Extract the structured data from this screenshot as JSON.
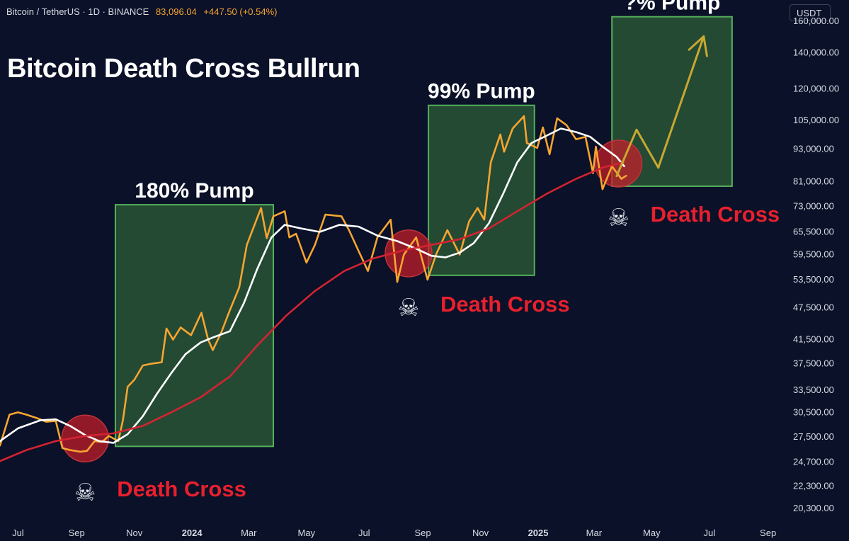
{
  "header": {
    "symbol": "Bitcoin / TetherUS · 1D · BINANCE",
    "last_price": "83,096.04",
    "change": "+447.50 (+0.54%)",
    "currency": "USDT"
  },
  "chart_data": {
    "type": "line",
    "title": "Bitcoin Death Cross Bullrun",
    "y_scale": "log",
    "ylim": [
      19000,
      175000
    ],
    "xlim": [
      "2023-06-12",
      "2025-09-20"
    ],
    "y_ticks": [
      160000,
      140000,
      120000,
      105000,
      93000,
      81000,
      73000,
      65500,
      59500,
      53500,
      47500,
      41500,
      37500,
      33500,
      30500,
      27500,
      24700,
      22300,
      20300
    ],
    "y_tick_labels": [
      "160,000.00",
      "140,000.00",
      "120,000.00",
      "105,000.00",
      "93,000.00",
      "81,000.00",
      "73,000.00",
      "65,500.00",
      "59,500.00",
      "53,500.00",
      "47,500.00",
      "41,500.00",
      "37,500.00",
      "33,500.00",
      "30,500.00",
      "27,500.00",
      "24,700.00",
      "22,300.00",
      "20,300.00"
    ],
    "x_ticks": [
      {
        "label": "Jul",
        "date": "2023-07-01"
      },
      {
        "label": "Sep",
        "date": "2023-09-01"
      },
      {
        "label": "Nov",
        "date": "2023-11-01"
      },
      {
        "label": "2024",
        "date": "2024-01-01"
      },
      {
        "label": "Mar",
        "date": "2024-03-01"
      },
      {
        "label": "May",
        "date": "2024-05-01"
      },
      {
        "label": "Jul",
        "date": "2024-07-01"
      },
      {
        "label": "Sep",
        "date": "2024-09-01"
      },
      {
        "label": "Nov",
        "date": "2024-11-01"
      },
      {
        "label": "2025",
        "date": "2025-01-01"
      },
      {
        "label": "Mar",
        "date": "2025-03-01"
      },
      {
        "label": "May",
        "date": "2025-05-01"
      },
      {
        "label": "Jul",
        "date": "2025-07-01"
      },
      {
        "label": "Sep",
        "date": "2025-09-01"
      }
    ],
    "series": [
      {
        "color": "#f7a531",
        "points": [
          [
            "2023-06-12",
            26500
          ],
          [
            "2023-06-22",
            30200
          ],
          [
            "2023-07-01",
            30500
          ],
          [
            "2023-07-10",
            30200
          ],
          [
            "2023-07-20",
            29800
          ],
          [
            "2023-07-31",
            29300
          ],
          [
            "2023-08-10",
            29400
          ],
          [
            "2023-08-17",
            26200
          ],
          [
            "2023-08-25",
            26000
          ],
          [
            "2023-09-05",
            25800
          ],
          [
            "2023-09-12",
            25900
          ],
          [
            "2023-09-20",
            27000
          ],
          [
            "2023-09-28",
            26900
          ],
          [
            "2023-10-05",
            27600
          ],
          [
            "2023-10-15",
            27000
          ],
          [
            "2023-10-20",
            29500
          ],
          [
            "2023-10-25",
            34000
          ],
          [
            "2023-11-01",
            35000
          ],
          [
            "2023-11-10",
            37200
          ],
          [
            "2023-11-20",
            37500
          ],
          [
            "2023-11-30",
            37700
          ],
          [
            "2023-12-05",
            43500
          ],
          [
            "2023-12-12",
            41500
          ],
          [
            "2023-12-20",
            43700
          ],
          [
            "2023-12-31",
            42300
          ],
          [
            "2024-01-11",
            46500
          ],
          [
            "2024-01-18",
            41500
          ],
          [
            "2024-01-23",
            39700
          ],
          [
            "2024-02-01",
            42800
          ],
          [
            "2024-02-10",
            47000
          ],
          [
            "2024-02-20",
            51800
          ],
          [
            "2024-02-28",
            62000
          ],
          [
            "2024-03-05",
            66000
          ],
          [
            "2024-03-14",
            72500
          ],
          [
            "2024-03-20",
            63800
          ],
          [
            "2024-03-27",
            70000
          ],
          [
            "2024-04-08",
            71500
          ],
          [
            "2024-04-13",
            64000
          ],
          [
            "2024-04-20",
            65000
          ],
          [
            "2024-05-01",
            57500
          ],
          [
            "2024-05-10",
            62000
          ],
          [
            "2024-05-21",
            70500
          ],
          [
            "2024-06-07",
            70000
          ],
          [
            "2024-06-15",
            66000
          ],
          [
            "2024-06-25",
            60500
          ],
          [
            "2024-07-05",
            55500
          ],
          [
            "2024-07-15",
            64000
          ],
          [
            "2024-07-29",
            69000
          ],
          [
            "2024-08-05",
            53000
          ],
          [
            "2024-08-12",
            59500
          ],
          [
            "2024-08-25",
            64000
          ],
          [
            "2024-09-06",
            53500
          ],
          [
            "2024-09-15",
            59500
          ],
          [
            "2024-09-27",
            66000
          ],
          [
            "2024-10-10",
            59500
          ],
          [
            "2024-10-20",
            68500
          ],
          [
            "2024-10-29",
            72500
          ],
          [
            "2024-11-05",
            69000
          ],
          [
            "2024-11-12",
            88000
          ],
          [
            "2024-11-22",
            99000
          ],
          [
            "2024-11-26",
            92000
          ],
          [
            "2024-12-05",
            101500
          ],
          [
            "2024-12-17",
            107000
          ],
          [
            "2024-12-20",
            95500
          ],
          [
            "2024-12-31",
            93500
          ],
          [
            "2025-01-06",
            102000
          ],
          [
            "2025-01-13",
            91000
          ],
          [
            "2025-01-21",
            106000
          ],
          [
            "2025-01-31",
            103000
          ],
          [
            "2025-02-10",
            97000
          ],
          [
            "2025-02-20",
            98000
          ],
          [
            "2025-02-28",
            84000
          ],
          [
            "2025-03-03",
            94000
          ],
          [
            "2025-03-10",
            78500
          ],
          [
            "2025-03-20",
            86500
          ],
          [
            "2025-03-30",
            82000
          ],
          [
            "2025-04-04",
            83096
          ]
        ]
      },
      {
        "color": "#ffffff",
        "points": [
          [
            "2023-06-12",
            27000
          ],
          [
            "2023-07-01",
            28500
          ],
          [
            "2023-07-25",
            29500
          ],
          [
            "2023-08-10",
            29600
          ],
          [
            "2023-08-25",
            28800
          ],
          [
            "2023-09-10",
            27700
          ],
          [
            "2023-09-25",
            27000
          ],
          [
            "2023-10-10",
            26800
          ],
          [
            "2023-10-25",
            27800
          ],
          [
            "2023-11-10",
            30000
          ],
          [
            "2023-11-25",
            33000
          ],
          [
            "2023-12-10",
            36000
          ],
          [
            "2023-12-25",
            39000
          ],
          [
            "2024-01-10",
            41000
          ],
          [
            "2024-01-25",
            42000
          ],
          [
            "2024-02-10",
            43000
          ],
          [
            "2024-02-25",
            48500
          ],
          [
            "2024-03-10",
            56000
          ],
          [
            "2024-03-25",
            64000
          ],
          [
            "2024-04-08",
            67500
          ],
          [
            "2024-04-25",
            66500
          ],
          [
            "2024-05-15",
            65500
          ],
          [
            "2024-06-05",
            67500
          ],
          [
            "2024-06-25",
            67000
          ],
          [
            "2024-07-15",
            64500
          ],
          [
            "2024-08-05",
            63000
          ],
          [
            "2024-08-25",
            61000
          ],
          [
            "2024-09-10",
            59200
          ],
          [
            "2024-09-25",
            58800
          ],
          [
            "2024-10-10",
            60000
          ],
          [
            "2024-10-25",
            62500
          ],
          [
            "2024-11-10",
            68000
          ],
          [
            "2024-11-25",
            77000
          ],
          [
            "2024-12-10",
            88000
          ],
          [
            "2024-12-25",
            95500
          ],
          [
            "2025-01-10",
            98500
          ],
          [
            "2025-01-25",
            101500
          ],
          [
            "2025-02-10",
            100000
          ],
          [
            "2025-02-25",
            98000
          ],
          [
            "2025-03-10",
            94000
          ],
          [
            "2025-03-25",
            90000
          ],
          [
            "2025-04-02",
            86500
          ]
        ]
      },
      {
        "color": "#d42331",
        "points": [
          [
            "2023-06-12",
            24800
          ],
          [
            "2023-07-10",
            26000
          ],
          [
            "2023-08-10",
            27000
          ],
          [
            "2023-09-10",
            27600
          ],
          [
            "2023-10-10",
            27900
          ],
          [
            "2023-11-10",
            28800
          ],
          [
            "2023-12-10",
            30500
          ],
          [
            "2024-01-10",
            32500
          ],
          [
            "2024-02-10",
            35500
          ],
          [
            "2024-03-10",
            40500
          ],
          [
            "2024-04-10",
            46000
          ],
          [
            "2024-05-10",
            51000
          ],
          [
            "2024-06-10",
            55500
          ],
          [
            "2024-07-10",
            58500
          ],
          [
            "2024-08-10",
            60500
          ],
          [
            "2024-09-10",
            62000
          ],
          [
            "2024-10-10",
            63500
          ],
          [
            "2024-11-10",
            66500
          ],
          [
            "2024-12-10",
            71500
          ],
          [
            "2025-01-10",
            77000
          ],
          [
            "2025-02-10",
            82000
          ],
          [
            "2025-03-10",
            86000
          ],
          [
            "2025-04-02",
            88000
          ]
        ]
      },
      {
        "color": "#c8a830",
        "points": [
          [
            "2025-03-25",
            83000
          ],
          [
            "2025-04-15",
            101000
          ],
          [
            "2025-05-08",
            86000
          ],
          [
            "2025-06-25",
            150000
          ]
        ]
      }
    ],
    "annotations": {
      "pump_boxes": [
        {
          "label": "180% Pump",
          "x0": "2023-10-12",
          "x1": "2024-03-27",
          "y0": 26400,
          "y1": 73500
        },
        {
          "label": "99% Pump",
          "x0": "2024-09-07",
          "x1": "2024-12-28",
          "y0": 54500,
          "y1": 112000
        },
        {
          "label": "?% Pump",
          "x0": "2025-03-20",
          "x1": "2025-07-25",
          "y0": 79500,
          "y1": 163000
        }
      ],
      "death_crosses": [
        {
          "label": "Death Cross",
          "date": "2023-09-10",
          "price": 27300
        },
        {
          "label": "Death Cross",
          "date": "2024-08-17",
          "price": 59800
        },
        {
          "label": "Death Cross",
          "date": "2025-03-27",
          "price": 87500
        }
      ]
    },
    "grid": false,
    "legend": "none"
  }
}
